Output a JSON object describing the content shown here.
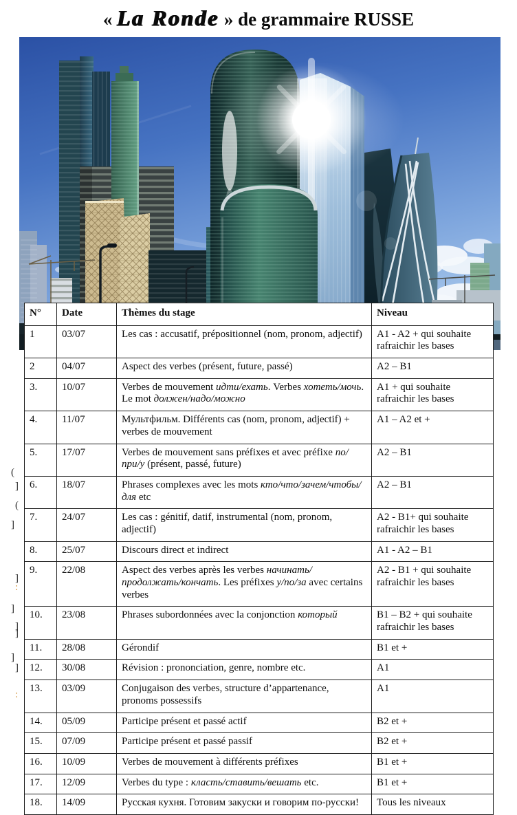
{
  "title": {
    "open_quote": "« ",
    "brand": "La Ronde",
    "rest": " » de grammaire RUSSE"
  },
  "photo": {
    "subject": "moscow-city-skyline",
    "sky_color": "#3f6cbe",
    "glass_color": "#2a514b",
    "flare_color": "#ffffff",
    "beige_color": "#cdbb90"
  },
  "margin_fragments": [
    "(",
    "]",
    "(",
    "]",
    "]",
    ":",
    "]",
    "]",
    "]",
    "]",
    "]",
    ":"
  ],
  "table": {
    "headers": [
      "N°",
      "Date",
      "Thèmes du stage",
      "Niveau"
    ],
    "rows": [
      {
        "num": "1",
        "date": "03/07",
        "theme": "Les cas : accusatif, prépositionnel (nom, pronom, adjectif)",
        "niveau": "A1 - A2 + qui souhaite rafraichir les bases"
      },
      {
        "num": "2",
        "date": "04/07",
        "theme": "Aspect des verbes (présent, future, passé)",
        "niveau": "A2 – B1"
      },
      {
        "num": "3.",
        "date": "10/07",
        "theme": "Verbes de mouvement *идти/ехать*. Verbes *хотеть/мочь*. Le mot *должен/надо/можно*",
        "niveau": "A1 + qui souhaite rafraichir les bases"
      },
      {
        "num": "4.",
        "date": "11/07",
        "theme": "Мультфильм. Différents cas (nom, pronom, adjectif) + verbes de mouvement",
        "niveau": "A1 – A2 et +"
      },
      {
        "num": "5.",
        "date": "17/07",
        "theme": "Verbes de mouvement sans préfixes et avec préfixe *по/при/у* (présent, passé, future)",
        "niveau": "A2 – B1"
      },
      {
        "num": "6.",
        "date": "18/07",
        "theme": "Phrases complexes avec les mots *кто/что/зачем/чтобы/для* etc",
        "niveau": "A2 – B1"
      },
      {
        "num": "7.",
        "date": "24/07",
        "theme": "Les cas : génitif,  datif, instrumental  (nom, pronom, adjectif)",
        "niveau": "A2 - B1+ qui souhaite rafraichir les bases"
      },
      {
        "num": "8.",
        "date": "25/07",
        "theme": "Discours direct et indirect",
        "niveau": "A1 - A2 – B1"
      },
      {
        "num": "9.",
        "date": "22/08",
        "theme": "Aspect des verbes après les verbes *начинать/продолжать/кончать*. Les préfixes *у/по/за* avec certains verbes",
        "niveau": "A2 - B1 + qui souhaite rafraichir les bases"
      },
      {
        "num": "10.",
        "date": "23/08",
        "theme": "Phrases subordonnées avec la conjonction *который*",
        "niveau": "B1 – B2 + qui souhaite rafraichir les bases"
      },
      {
        "num": "11.",
        "date": "28/08",
        "theme": "Gérondif",
        "niveau": "B1 et +"
      },
      {
        "num": "12.",
        "date": "30/08",
        "theme": "Révision : prononciation, genre, nombre etc.",
        "niveau": "A1"
      },
      {
        "num": "13.",
        "date": "03/09",
        "theme": "Conjugaison des verbes, structure d’appartenance,  pronoms possessifs",
        "niveau": "A1"
      },
      {
        "num": "14.",
        "date": "05/09",
        "theme": "Participe présent et passé actif",
        "niveau": "B2 et +"
      },
      {
        "num": "15.",
        "date": "07/09",
        "theme": "Participe présent et passé passif",
        "niveau": "B2 et +"
      },
      {
        "num": "16.",
        "date": "10/09",
        "theme": "Verbes de mouvement à différents préfixes",
        "niveau": "B1 et +"
      },
      {
        "num": "17.",
        "date": "12/09",
        "theme": "Verbes du type : *класть/ставить/вешать* etc.",
        "niveau": "B1 et +"
      },
      {
        "num": "18.",
        "date": "14/09",
        "theme": "Русская кухня. Готовим закуски и говорим по-русски!",
        "niveau": "Tous les niveaux"
      }
    ]
  }
}
